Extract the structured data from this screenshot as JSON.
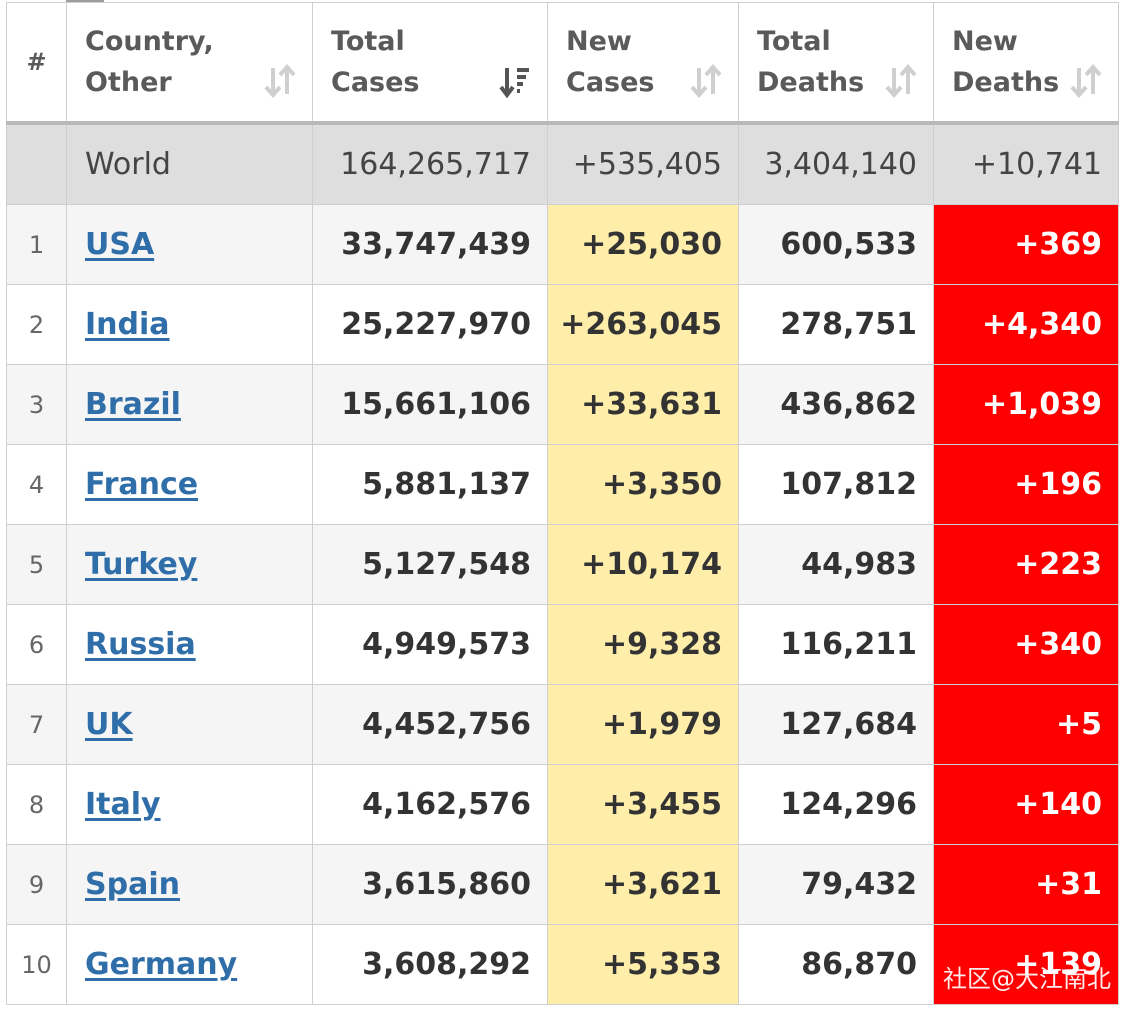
{
  "headers": {
    "index": "#",
    "country": "Country, Other",
    "total_cases": "Total Cases",
    "new_cases": "New Cases",
    "total_deaths": "Total Deaths",
    "new_deaths": "New Deaths"
  },
  "sort_icons": {
    "country": "sort-arrows-icon",
    "total_cases": "sort-descending-active-icon",
    "new_cases": "sort-arrows-icon",
    "total_deaths": "sort-arrows-icon",
    "new_deaths": "sort-arrows-icon"
  },
  "world": {
    "country": "World",
    "total_cases": "164,265,717",
    "new_cases": "+535,405",
    "total_deaths": "3,404,140",
    "new_deaths": "+10,741"
  },
  "rows": [
    {
      "index": "1",
      "country": "USA",
      "total_cases": "33,747,439",
      "new_cases": "+25,030",
      "total_deaths": "600,533",
      "new_deaths": "+369"
    },
    {
      "index": "2",
      "country": "India",
      "total_cases": "25,227,970",
      "new_cases": "+263,045",
      "total_deaths": "278,751",
      "new_deaths": "+4,340"
    },
    {
      "index": "3",
      "country": "Brazil",
      "total_cases": "15,661,106",
      "new_cases": "+33,631",
      "total_deaths": "436,862",
      "new_deaths": "+1,039"
    },
    {
      "index": "4",
      "country": "France",
      "total_cases": "5,881,137",
      "new_cases": "+3,350",
      "total_deaths": "107,812",
      "new_deaths": "+196"
    },
    {
      "index": "5",
      "country": "Turkey",
      "total_cases": "5,127,548",
      "new_cases": "+10,174",
      "total_deaths": "44,983",
      "new_deaths": "+223"
    },
    {
      "index": "6",
      "country": "Russia",
      "total_cases": "4,949,573",
      "new_cases": "+9,328",
      "total_deaths": "116,211",
      "new_deaths": "+340"
    },
    {
      "index": "7",
      "country": "UK",
      "total_cases": "4,452,756",
      "new_cases": "+1,979",
      "total_deaths": "127,684",
      "new_deaths": "+5"
    },
    {
      "index": "8",
      "country": "Italy",
      "total_cases": "4,162,576",
      "new_cases": "+3,455",
      "total_deaths": "124,296",
      "new_deaths": "+140"
    },
    {
      "index": "9",
      "country": "Spain",
      "total_cases": "3,615,860",
      "new_cases": "+3,621",
      "total_deaths": "79,432",
      "new_deaths": "+31"
    },
    {
      "index": "10",
      "country": "Germany",
      "total_cases": "3,608,292",
      "new_cases": "+5,353",
      "total_deaths": "86,870",
      "new_deaths": "+139"
    }
  ],
  "colors": {
    "new_cases_bg": "#ffeeaa",
    "new_deaths_bg": "#ff0000",
    "world_row_bg": "#dedede",
    "link": "#2f6ea8"
  },
  "watermark": "社区@大江南北"
}
